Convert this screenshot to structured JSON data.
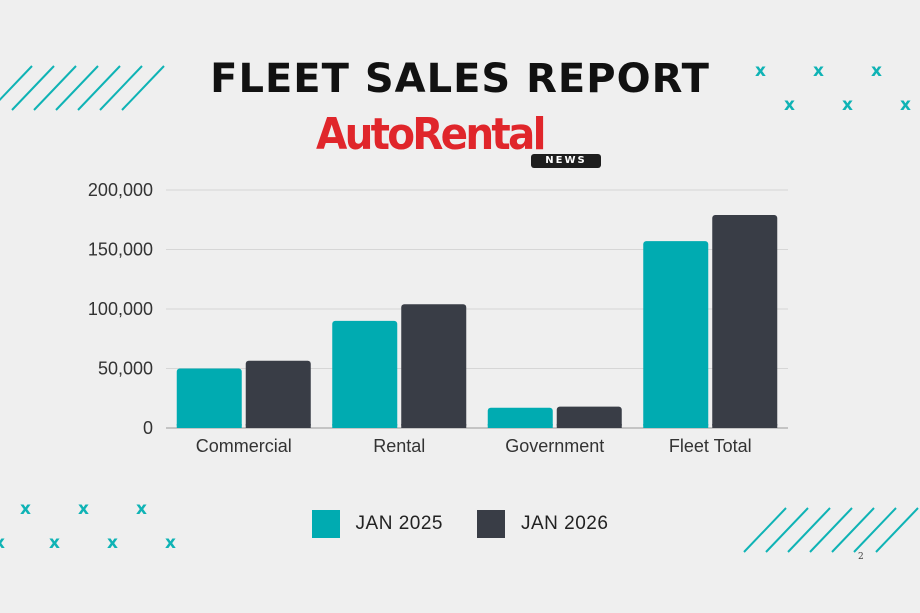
{
  "header": {
    "title": "FLEET SALES REPORT",
    "logo_main": "AutoRental",
    "logo_sub": "NEWS"
  },
  "page_number": "2",
  "colors": {
    "series_2025": "#00abb1",
    "series_2026": "#393d46",
    "accent": "#0fb3b5",
    "logo_red": "#e0262b"
  },
  "chart_data": {
    "type": "bar",
    "title": "FLEET SALES REPORT",
    "categories": [
      "Commercial",
      "Rental",
      "Government",
      "Fleet Total"
    ],
    "series": [
      {
        "name": "JAN 2025",
        "color": "#00abb1",
        "values": [
          50000,
          90000,
          17000,
          157000
        ]
      },
      {
        "name": "JAN 2026",
        "color": "#393d46",
        "values": [
          56500,
          104000,
          18000,
          179000
        ]
      }
    ],
    "yticks": [
      0,
      50000,
      100000,
      150000,
      200000
    ],
    "ytick_labels": [
      "0",
      "50,000",
      "100,000",
      "150,000",
      "200,000"
    ],
    "ylim": [
      0,
      200000
    ],
    "grid": true,
    "legend_position": "bottom-center",
    "xlabel": "",
    "ylabel": ""
  }
}
